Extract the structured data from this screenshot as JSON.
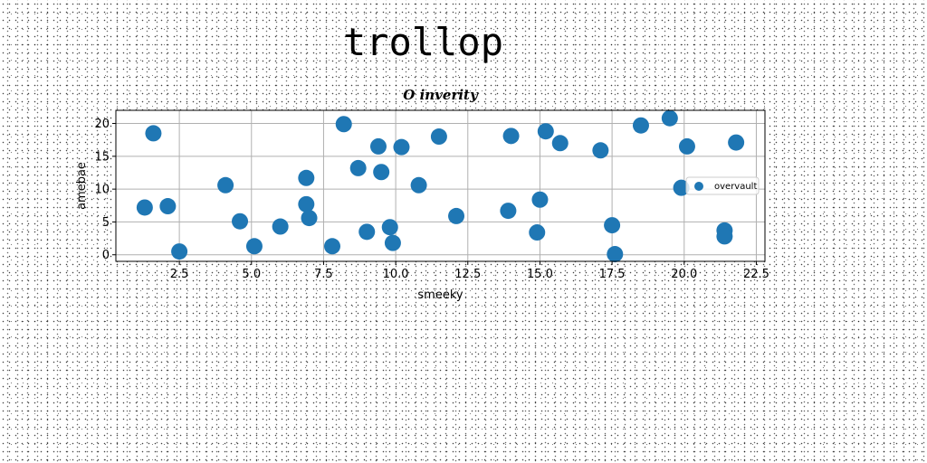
{
  "page": {
    "title": "trollop"
  },
  "chart_data": {
    "type": "scatter",
    "title": "O inverity",
    "xlabel": "smeeky",
    "ylabel": "amebae",
    "xlim": [
      0.3,
      22.8
    ],
    "ylim": [
      -1,
      22
    ],
    "xticks": [
      2.5,
      5.0,
      7.5,
      10.0,
      12.5,
      15.0,
      17.5,
      20.0,
      22.5
    ],
    "xtick_labels": [
      "2.5",
      "5.0",
      "7.5",
      "10.0",
      "12.5",
      "15.0",
      "17.5",
      "20.0",
      "22.5"
    ],
    "yticks": [
      0,
      5,
      10,
      15,
      20
    ],
    "ytick_labels": [
      "0",
      "5",
      "10",
      "15",
      "20"
    ],
    "grid": true,
    "legend": {
      "placement": "center-right"
    },
    "series": [
      {
        "name": "overvault",
        "color": "#1f77b4",
        "points": [
          [
            1.3,
            7.2
          ],
          [
            1.6,
            18.5
          ],
          [
            2.1,
            7.4
          ],
          [
            2.5,
            0.5
          ],
          [
            4.1,
            10.6
          ],
          [
            4.6,
            5.1
          ],
          [
            5.1,
            1.3
          ],
          [
            6.0,
            4.3
          ],
          [
            6.9,
            11.7
          ],
          [
            6.9,
            7.7
          ],
          [
            7.0,
            5.6
          ],
          [
            7.8,
            1.3
          ],
          [
            8.2,
            19.9
          ],
          [
            8.7,
            13.2
          ],
          [
            9.0,
            3.5
          ],
          [
            9.4,
            16.5
          ],
          [
            9.5,
            12.6
          ],
          [
            9.8,
            4.2
          ],
          [
            9.9,
            1.8
          ],
          [
            10.2,
            16.4
          ],
          [
            10.8,
            10.6
          ],
          [
            11.5,
            18.0
          ],
          [
            12.1,
            5.9
          ],
          [
            13.9,
            6.7
          ],
          [
            14.0,
            18.1
          ],
          [
            14.9,
            3.4
          ],
          [
            15.0,
            8.4
          ],
          [
            15.2,
            18.8
          ],
          [
            15.7,
            17.0
          ],
          [
            17.1,
            15.9
          ],
          [
            17.5,
            4.5
          ],
          [
            17.6,
            0.1
          ],
          [
            18.5,
            19.7
          ],
          [
            19.5,
            20.8
          ],
          [
            19.9,
            10.2
          ],
          [
            20.1,
            16.5
          ],
          [
            21.4,
            3.7
          ],
          [
            21.4,
            2.8
          ],
          [
            21.8,
            17.1
          ]
        ]
      }
    ]
  }
}
